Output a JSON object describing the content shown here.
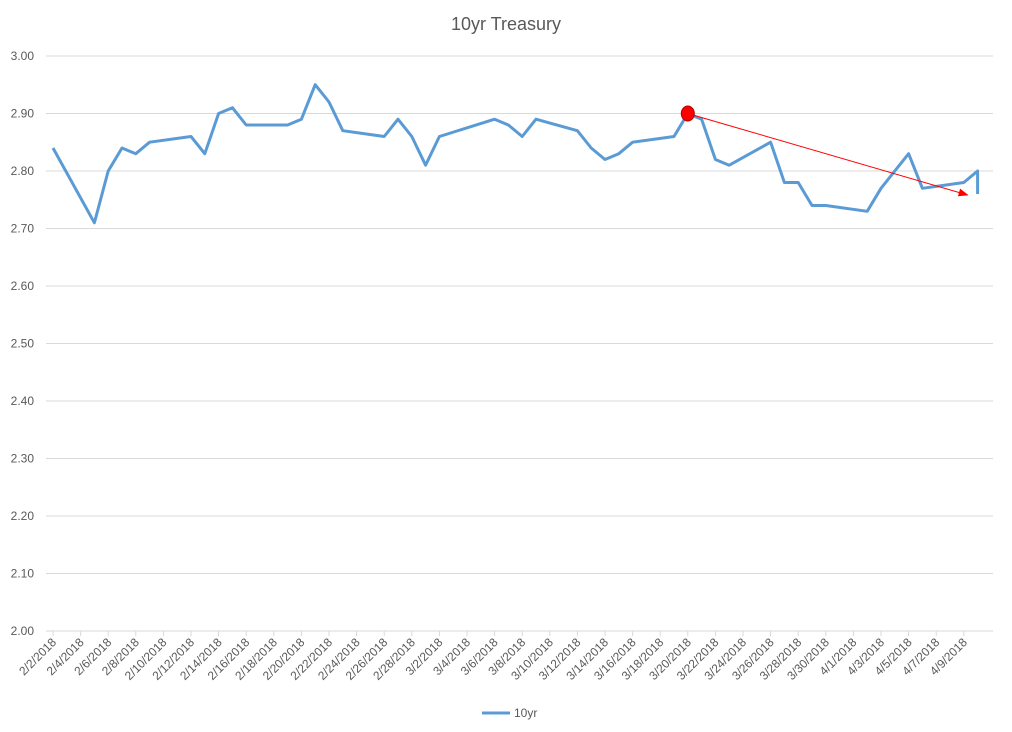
{
  "chart_data": {
    "type": "line",
    "title": "10yr Treasury",
    "xlabel": "",
    "ylabel": "",
    "ylim": [
      2.0,
      3.0
    ],
    "yticks": [
      "3.00",
      "2.90",
      "2.80",
      "2.70",
      "2.60",
      "2.50",
      "2.40",
      "2.30",
      "2.20",
      "2.10",
      "2.00"
    ],
    "x_range": [
      "2/2/2018",
      "4/10/2018"
    ],
    "xticks": [
      "2/2/2018",
      "2/4/2018",
      "2/6/2018",
      "2/8/2018",
      "2/10/2018",
      "2/12/2018",
      "2/14/2018",
      "2/16/2018",
      "2/18/2018",
      "2/20/2018",
      "2/22/2018",
      "2/24/2018",
      "2/26/2018",
      "2/28/2018",
      "3/2/2018",
      "3/4/2018",
      "3/6/2018",
      "3/8/2018",
      "3/10/2018",
      "3/12/2018",
      "3/14/2018",
      "3/16/2018",
      "3/18/2018",
      "3/20/2018",
      "3/22/2018",
      "3/24/2018",
      "3/26/2018",
      "3/28/2018",
      "3/30/2018",
      "4/1/2018",
      "4/3/2018",
      "4/5/2018",
      "4/7/2018",
      "4/9/2018"
    ],
    "grid": true,
    "legend": "bottom-center",
    "series": [
      {
        "name": "10yr",
        "color": "#5B9BD5",
        "points": [
          [
            "2/2/2018",
            2.84
          ],
          [
            "2/5/2018",
            2.71
          ],
          [
            "2/6/2018",
            2.8
          ],
          [
            "2/7/2018",
            2.84
          ],
          [
            "2/8/2018",
            2.83
          ],
          [
            "2/9/2018",
            2.85
          ],
          [
            "2/12/2018",
            2.86
          ],
          [
            "2/13/2018",
            2.83
          ],
          [
            "2/14/2018",
            2.9
          ],
          [
            "2/15/2018",
            2.91
          ],
          [
            "2/16/2018",
            2.88
          ],
          [
            "2/19/2018",
            2.88
          ],
          [
            "2/20/2018",
            2.89
          ],
          [
            "2/21/2018",
            2.95
          ],
          [
            "2/22/2018",
            2.92
          ],
          [
            "2/23/2018",
            2.87
          ],
          [
            "2/26/2018",
            2.86
          ],
          [
            "2/27/2018",
            2.89
          ],
          [
            "2/28/2018",
            2.86
          ],
          [
            "3/1/2018",
            2.81
          ],
          [
            "3/2/2018",
            2.86
          ],
          [
            "3/6/2018",
            2.89
          ],
          [
            "3/7/2018",
            2.88
          ],
          [
            "3/8/2018",
            2.86
          ],
          [
            "3/9/2018",
            2.89
          ],
          [
            "3/12/2018",
            2.87
          ],
          [
            "3/13/2018",
            2.84
          ],
          [
            "3/14/2018",
            2.82
          ],
          [
            "3/15/2018",
            2.83
          ],
          [
            "3/16/2018",
            2.85
          ],
          [
            "3/19/2018",
            2.86
          ],
          [
            "3/20/2018",
            2.9
          ],
          [
            "3/21/2018",
            2.89
          ],
          [
            "3/22/2018",
            2.82
          ],
          [
            "3/23/2018",
            2.81
          ],
          [
            "3/26/2018",
            2.85
          ],
          [
            "3/27/2018",
            2.78
          ],
          [
            "3/28/2018",
            2.78
          ],
          [
            "3/29/2018",
            2.74
          ],
          [
            "3/30/2018",
            2.74
          ],
          [
            "4/2/2018",
            2.73
          ],
          [
            "4/3/2018",
            2.77
          ],
          [
            "4/5/2018",
            2.83
          ],
          [
            "4/6/2018",
            2.77
          ],
          [
            "4/9/2018",
            2.78
          ],
          [
            "4/10/2018",
            2.8
          ],
          [
            "4/10/2018",
            2.76
          ]
        ]
      }
    ],
    "annotations": [
      {
        "type": "marker",
        "date": "3/20/2018",
        "value": 2.9,
        "color": "#FF0000"
      },
      {
        "type": "arrow",
        "from": [
          "3/20/2018",
          2.9
        ],
        "to": [
          "4/10/2018",
          2.76
        ],
        "color": "#FF0000"
      }
    ]
  }
}
